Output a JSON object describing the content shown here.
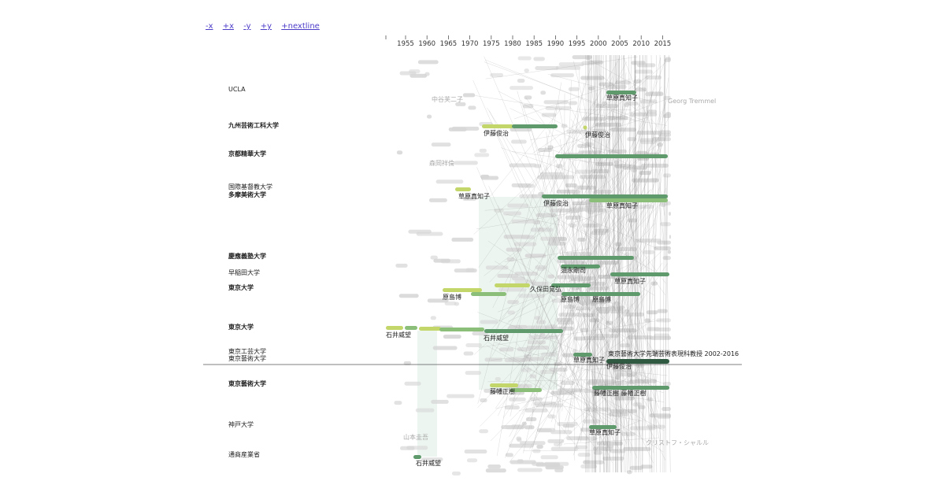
{
  "nav": {
    "minus_x": "-x",
    "plus_x": "+x",
    "minus_y": "-y",
    "plus_y": "+y",
    "nextline": "+nextline"
  },
  "axis": {
    "years": [
      "1955",
      "1960",
      "1965",
      "1970",
      "1975",
      "1980",
      "1985",
      "1990",
      "1995",
      "2000",
      "2005",
      "2010",
      "2015"
    ]
  },
  "institutions": [
    {
      "label": "UCLA",
      "bold": false
    },
    {
      "label": "九州芸術工科大学",
      "bold": true
    },
    {
      "label": "京都精華大学",
      "bold": true
    },
    {
      "label": "国際基督教大学",
      "bold": false
    },
    {
      "label": "多摩美術大学",
      "bold": true
    },
    {
      "label": "慶應義塾大学",
      "bold": true
    },
    {
      "label": "早稲田大学",
      "bold": false
    },
    {
      "label": "東京大学",
      "bold": true
    },
    {
      "label": "東京大学",
      "bold": true
    },
    {
      "label": "東京工芸大学",
      "bold": false
    },
    {
      "label": "東京藝術大学",
      "bold": false
    },
    {
      "label": "東京藝術大学",
      "bold": true
    },
    {
      "label": "神戸大学",
      "bold": false
    },
    {
      "label": "通商産業省",
      "bold": false
    }
  ],
  "people": [
    {
      "label": "草原真知子",
      "faint": false
    },
    {
      "label": "中谷芙二子",
      "faint": true
    },
    {
      "label": "伊藤俊治",
      "faint": false
    },
    {
      "label": "伊藤俊治",
      "faint": false
    },
    {
      "label": "草原真知子",
      "faint": false
    },
    {
      "label": "伊藤俊治",
      "faint": false
    },
    {
      "label": "草原真知子",
      "faint": false
    },
    {
      "label": "石井威望",
      "faint": false
    },
    {
      "label": "石井威望",
      "faint": false
    },
    {
      "label": "原島博",
      "faint": false
    },
    {
      "label": "原島博",
      "faint": false
    },
    {
      "label": "原島博",
      "faint": false
    },
    {
      "label": "久保田晃弘",
      "faint": false
    },
    {
      "label": "草原真知子",
      "faint": false
    },
    {
      "label": "伊藤俊治",
      "faint": false
    },
    {
      "label": "草原真知子",
      "faint": false
    },
    {
      "label": "須永剛司",
      "faint": false
    },
    {
      "label": "藤幡正樹",
      "faint": false
    },
    {
      "label": "藤幡正樹 藤幡正樹",
      "faint": false
    },
    {
      "label": "草原真知子",
      "faint": false
    },
    {
      "label": "石井威望",
      "faint": false
    },
    {
      "label": "森岡祥倫",
      "faint": true
    },
    {
      "label": "山本圭吾",
      "faint": true
    },
    {
      "label": "Georg Tremmel",
      "faint": true
    },
    {
      "label": "クリストフ・シャルル",
      "faint": true
    }
  ],
  "highlight": {
    "label": "東京藝術大学先端芸術表現科教授 2002-2016"
  },
  "colors": {
    "bar_light": "#c2d66a",
    "bar_mid": "#8bbf79",
    "bar_dark": "#5f9a6d",
    "bar_darkest": "#2f5a41",
    "ghost": "#d6d6d6",
    "divider": "#555555"
  }
}
